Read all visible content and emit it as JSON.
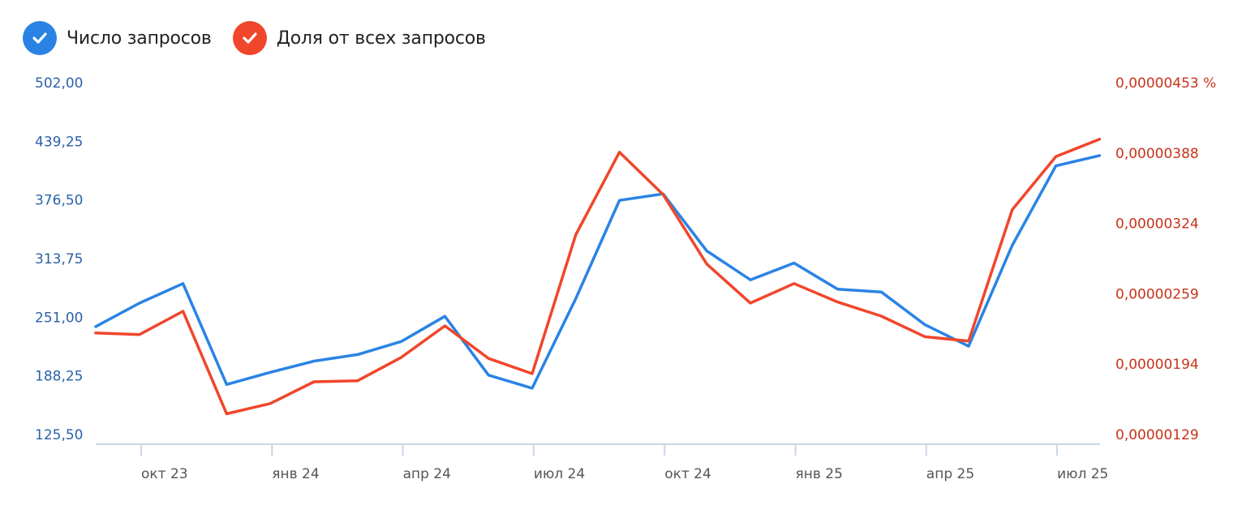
{
  "legend": {
    "items": [
      {
        "label": "Число запросов",
        "color": "#2a83e4"
      },
      {
        "label": "Доля от всех запросов",
        "color": "#f0462b"
      }
    ]
  },
  "chart_data": {
    "type": "line",
    "x_tick_labels": [
      "окт 23",
      "янв 24",
      "апр 24",
      "июл 24",
      "окт 24",
      "янв 25",
      "апр 25",
      "июл 25"
    ],
    "left_axis": {
      "ticks": [
        "502,00",
        "439,25",
        "376,50",
        "313,75",
        "251,00",
        "188,25",
        "125,50"
      ],
      "ylim": [
        125.5,
        502.0
      ],
      "color": "#2a62a8"
    },
    "right_axis": {
      "ticks": [
        "0,00000453 %",
        "0,00000388",
        "0,00000324",
        "0,00000259",
        "0,00000194",
        "0,00000129"
      ],
      "ylim": [
        1.29e-06,
        4.53e-06
      ],
      "color": "#c9331b"
    },
    "series": [
      {
        "name": "Число запросов",
        "axis": "left",
        "color": "#2a83e4",
        "values": [
          241,
          266,
          287,
          179,
          192,
          204,
          211,
          225,
          252,
          189,
          175,
          271,
          376,
          383,
          322,
          291,
          309,
          281,
          278,
          243,
          220,
          328,
          413,
          424
        ]
      },
      {
        "name": "Доля от всех запросов",
        "axis": "right",
        "color": "#f0462b",
        "values": [
          2.225e-06,
          2.21e-06,
          2.425e-06,
          1.48e-06,
          1.575e-06,
          1.775e-06,
          1.785e-06,
          2e-06,
          2.29e-06,
          1.99e-06,
          1.85e-06,
          3.13e-06,
          3.89e-06,
          3.5e-06,
          2.86e-06,
          2.5e-06,
          2.68e-06,
          2.51e-06,
          2.38e-06,
          2.19e-06,
          2.15e-06,
          3.36e-06,
          3.85e-06,
          4.01e-06
        ]
      }
    ]
  }
}
